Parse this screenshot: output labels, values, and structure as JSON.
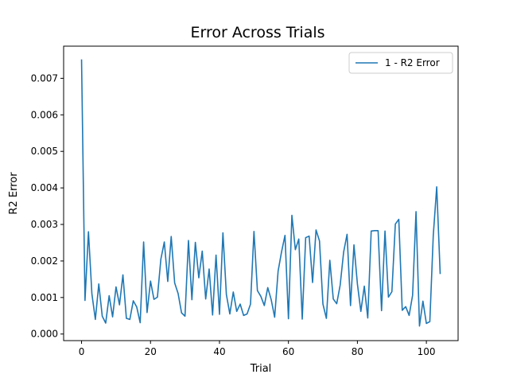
{
  "chart_data": {
    "type": "line",
    "title": "Error Across Trials",
    "xlabel": "Trial",
    "ylabel": "R2 Error",
    "xlim": [
      -5.2,
      109.2
    ],
    "ylim": [
      -0.00018,
      0.00788
    ],
    "xticks": [
      0,
      20,
      40,
      60,
      80,
      100
    ],
    "xtick_labels": [
      "0",
      "20",
      "40",
      "60",
      "80",
      "100"
    ],
    "yticks": [
      0.0,
      0.001,
      0.002,
      0.003,
      0.004,
      0.005,
      0.006,
      0.007
    ],
    "ytick_labels": [
      "0.000",
      "0.001",
      "0.002",
      "0.003",
      "0.004",
      "0.005",
      "0.006",
      "0.007"
    ],
    "grid": false,
    "legend_position": "upper right",
    "series": [
      {
        "name": "1 - R2 Error",
        "color": "#1f77b4",
        "x": [
          0,
          1,
          2,
          3,
          4,
          5,
          6,
          7,
          8,
          9,
          10,
          11,
          12,
          13,
          14,
          15,
          16,
          17,
          18,
          19,
          20,
          21,
          22,
          23,
          24,
          25,
          26,
          27,
          28,
          29,
          30,
          31,
          32,
          33,
          34,
          35,
          36,
          37,
          38,
          39,
          40,
          41,
          42,
          43,
          44,
          45,
          46,
          47,
          48,
          49,
          50,
          51,
          52,
          53,
          54,
          55,
          56,
          57,
          58,
          59,
          60,
          61,
          62,
          63,
          64,
          65,
          66,
          67,
          68,
          69,
          70,
          71,
          72,
          73,
          74,
          75,
          76,
          77,
          78,
          79,
          80,
          81,
          82,
          83,
          84,
          85,
          86,
          87,
          88,
          89,
          90,
          91,
          92,
          93,
          94,
          95,
          96,
          97,
          98,
          99,
          100,
          101,
          102,
          103,
          104
        ],
        "values": [
          0.0075,
          0.00092,
          0.0028,
          0.0011,
          0.0004,
          0.00137,
          0.00049,
          0.0003,
          0.00105,
          0.00047,
          0.00129,
          0.0008,
          0.00162,
          0.00043,
          0.0004,
          0.00091,
          0.00074,
          0.00031,
          0.00252,
          0.00059,
          0.00145,
          0.00095,
          0.00101,
          0.00205,
          0.00252,
          0.00144,
          0.00267,
          0.0014,
          0.00111,
          0.00058,
          0.00049,
          0.00256,
          0.00094,
          0.00251,
          0.00154,
          0.00227,
          0.00096,
          0.00178,
          0.00052,
          0.00216,
          0.00054,
          0.00277,
          0.00108,
          0.00055,
          0.00115,
          0.00062,
          0.00082,
          0.00051,
          0.00055,
          0.00082,
          0.00281,
          0.00119,
          0.00103,
          0.00078,
          0.00127,
          0.00094,
          0.00046,
          0.00172,
          0.00225,
          0.0027,
          0.00042,
          0.00325,
          0.00231,
          0.0026,
          0.00041,
          0.00264,
          0.00268,
          0.00141,
          0.00285,
          0.00255,
          0.00082,
          0.00043,
          0.00202,
          0.00096,
          0.00083,
          0.00134,
          0.00224,
          0.00273,
          0.00078,
          0.00244,
          0.00137,
          0.00062,
          0.00131,
          0.00044,
          0.00282,
          0.00283,
          0.00283,
          0.00064,
          0.00282,
          0.00101,
          0.00116,
          0.00301,
          0.00314,
          0.00065,
          0.00075,
          0.00051,
          0.00106,
          0.00335,
          0.00022,
          0.0009,
          0.00029,
          0.00034,
          0.0027,
          0.00403,
          0.00166
        ]
      }
    ]
  }
}
